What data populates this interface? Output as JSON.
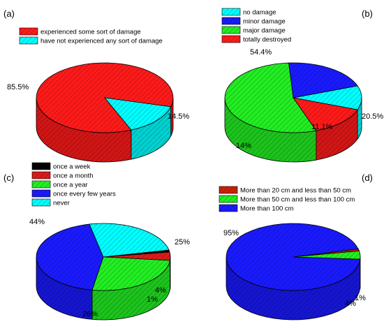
{
  "chart_data": [
    {
      "type": "pie",
      "panel": "(a)",
      "slices": [
        {
          "label": "experienced some sort of damage",
          "value": 85.5,
          "value_label": "85.5%",
          "color": "#ff1a1a",
          "hatch": true
        },
        {
          "label": "have not experienced any sort of damage",
          "value": 14.5,
          "value_label": "14.5%",
          "color": "#00ffff",
          "hatch": true
        }
      ]
    },
    {
      "type": "pie",
      "panel": "(b)",
      "slices": [
        {
          "label": "no damage",
          "value": 11.1,
          "value_label": "11.1%",
          "color": "#00ffff",
          "hatch": true
        },
        {
          "label": "minor damage",
          "value": 20.5,
          "value_label": "20.5%",
          "color": "#1a1aff",
          "hatch": true
        },
        {
          "label": "major damage",
          "value": 54.4,
          "value_label": "54.4%",
          "color": "#22ee22",
          "hatch": true
        },
        {
          "label": "totally destroyed",
          "value": 14,
          "value_label": "14%",
          "color": "#ff1a1a",
          "hatch": true
        }
      ]
    },
    {
      "type": "pie",
      "panel": "(c)",
      "slices": [
        {
          "label": "once a week",
          "value": 1,
          "value_label": "1%",
          "color": "#000000",
          "hatch": false
        },
        {
          "label": "once a month",
          "value": 4,
          "value_label": "4%",
          "color": "#dd1a1a",
          "hatch": true
        },
        {
          "label": "once a year",
          "value": 26,
          "value_label": "26%",
          "color": "#22ee22",
          "hatch": true
        },
        {
          "label": "once every few years",
          "value": 44,
          "value_label": "44%",
          "color": "#1a1aff",
          "hatch": true
        },
        {
          "label": "never",
          "value": 25,
          "value_label": "25%",
          "color": "#00ffff",
          "hatch": true
        }
      ]
    },
    {
      "type": "pie",
      "panel": "(d)",
      "slices": [
        {
          "label": "More than 20 cm and less than 50 cm",
          "value": 1,
          "value_label": "1%",
          "color": "#cc2200",
          "hatch": true
        },
        {
          "label": "More than 50 cm and less than 100 cm",
          "value": 4,
          "value_label": "4%",
          "color": "#22ee22",
          "hatch": true
        },
        {
          "label": "More than 100 cm",
          "value": 95,
          "value_label": "95%",
          "color": "#1a1aff",
          "hatch": true
        }
      ]
    }
  ]
}
